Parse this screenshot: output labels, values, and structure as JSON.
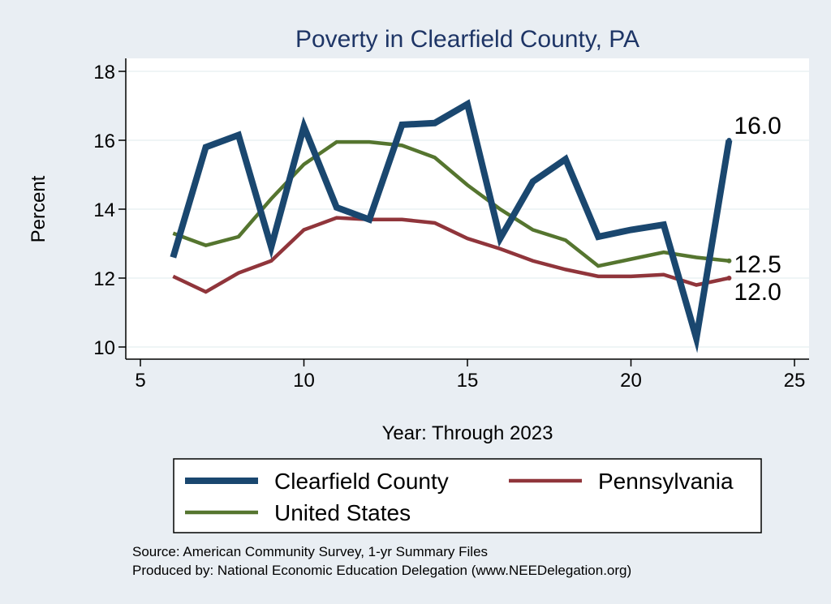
{
  "chart_data": {
    "type": "line",
    "title": "Poverty in Clearfield County, PA",
    "xlabel": "Year: Through 2023",
    "ylabel": "Percent",
    "xlim": [
      5,
      25
    ],
    "ylim": [
      10,
      18
    ],
    "xticks": [
      5,
      10,
      15,
      20,
      25
    ],
    "yticks": [
      10,
      12,
      14,
      16,
      18
    ],
    "grid": true,
    "legend_position": "bottom",
    "series": [
      {
        "name": "Clearfield County",
        "color": "#1a476f",
        "x": [
          6,
          7,
          8,
          9,
          10,
          11,
          12,
          13,
          14,
          15,
          16,
          17,
          18,
          19,
          20,
          21,
          22,
          23
        ],
        "y": [
          12.6,
          15.8,
          16.15,
          12.9,
          16.4,
          14.05,
          13.7,
          16.45,
          16.5,
          17.05,
          13.15,
          14.8,
          15.45,
          13.2,
          13.4,
          13.55,
          10.25,
          16.0
        ],
        "end_label": "16.0"
      },
      {
        "name": "Pennsylvania",
        "color": "#90353b",
        "x": [
          6,
          7,
          8,
          9,
          10,
          11,
          12,
          13,
          14,
          15,
          16,
          17,
          18,
          19,
          20,
          21,
          22,
          23
        ],
        "y": [
          12.05,
          11.6,
          12.15,
          12.5,
          13.4,
          13.75,
          13.7,
          13.7,
          13.6,
          13.15,
          12.85,
          12.5,
          12.25,
          12.05,
          12.05,
          12.1,
          11.8,
          12.0
        ],
        "end_label": "12.0"
      },
      {
        "name": "United States",
        "color": "#55752f",
        "x": [
          6,
          7,
          8,
          9,
          10,
          11,
          12,
          13,
          14,
          15,
          16,
          17,
          18,
          19,
          20,
          21,
          22,
          23
        ],
        "y": [
          13.3,
          12.95,
          13.2,
          14.3,
          15.3,
          15.95,
          15.95,
          15.85,
          15.5,
          14.7,
          14.0,
          13.4,
          13.1,
          12.35,
          12.55,
          12.75,
          12.6,
          12.5
        ],
        "end_label": "12.5"
      }
    ],
    "legend_order": [
      "Clearfield County",
      "Pennsylvania",
      "United States"
    ],
    "notes": [
      "Source: American Community Survey, 1-yr Summary Files",
      "Produced by: National Economic Education Delegation (www.NEEDelegation.org)"
    ]
  }
}
